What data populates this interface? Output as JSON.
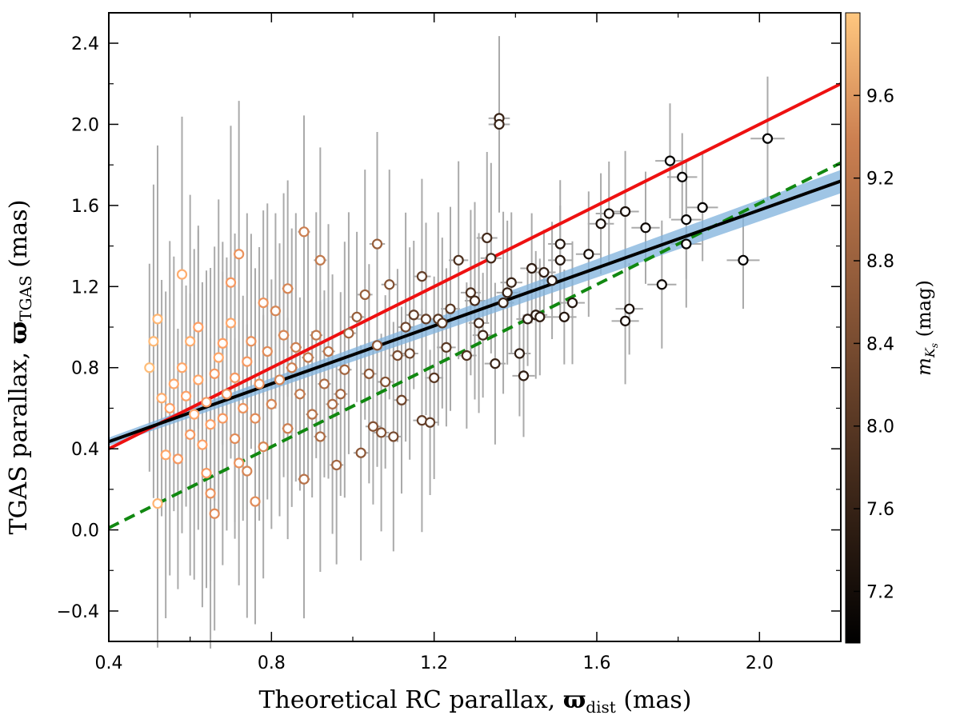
{
  "chart_data": {
    "type": "scatter",
    "xlabel_text": "Theoretical RC parallax, ",
    "xlabel_sym": "ϖ",
    "xlabel_sub": "dist",
    "xlabel_unit": " (mas)",
    "ylabel_text": "TGAS parallax, ",
    "ylabel_sym": "ϖ",
    "ylabel_sub": "TGAS",
    "ylabel_unit": " (mas)",
    "colorbar_label_sym": "m",
    "colorbar_label_sub": "K",
    "colorbar_label_subsub": "s",
    "colorbar_label_unit": " (mag)",
    "xlim": [
      0.4,
      2.2
    ],
    "ylim": [
      -0.55,
      2.55
    ],
    "xticks": [
      0.4,
      0.8,
      1.2,
      1.6,
      2.0
    ],
    "yticks": [
      -0.4,
      0.0,
      0.4,
      0.8,
      1.2,
      1.6,
      2.0,
      2.4
    ],
    "xtick_labels": [
      "0.4",
      "0.8",
      "1.2",
      "1.6",
      "2.0"
    ],
    "ytick_labels": [
      "−0.4",
      "0.0",
      "0.4",
      "0.8",
      "1.2",
      "1.6",
      "2.0",
      "2.4"
    ],
    "colorbar": {
      "range": [
        6.95,
        10.0
      ],
      "ticks": [
        7.2,
        7.6,
        8.0,
        8.4,
        8.8,
        9.2,
        9.6
      ],
      "tick_labels": [
        "7.2",
        "7.6",
        "8.0",
        "8.4",
        "8.8",
        "9.2",
        "9.6"
      ],
      "colormap": "copper",
      "color_low": "#000000",
      "color_high": "#ffc77f"
    },
    "lines": [
      {
        "style": "solid",
        "color": "#ee1111",
        "x": [
          0.4,
          2.2
        ],
        "y": [
          0.4,
          2.2
        ]
      },
      {
        "style": "dashed",
        "color": "#118811",
        "x": [
          0.4,
          2.2
        ],
        "y": [
          0.01,
          1.81
        ]
      },
      {
        "style": "solid",
        "color": "#000000",
        "x": [
          0.4,
          2.2
        ],
        "y": [
          0.435,
          1.72
        ]
      }
    ],
    "fit_band": {
      "color": "#7fb2dc",
      "x": [
        0.4,
        2.2
      ],
      "lower": [
        0.415,
        1.66
      ],
      "upper": [
        0.455,
        1.775
      ]
    },
    "points": [
      {
        "x": 0.5,
        "y": 0.8,
        "mag": 9.85
      },
      {
        "x": 0.51,
        "y": 0.93,
        "mag": 9.8
      },
      {
        "x": 0.52,
        "y": 1.04,
        "mag": 9.75
      },
      {
        "x": 0.52,
        "y": 0.13,
        "mag": 9.7
      },
      {
        "x": 0.53,
        "y": 0.65,
        "mag": 9.6
      },
      {
        "x": 0.54,
        "y": 0.37,
        "mag": 9.5
      },
      {
        "x": 0.55,
        "y": 0.6,
        "mag": 9.4
      },
      {
        "x": 0.56,
        "y": 0.72,
        "mag": 9.5
      },
      {
        "x": 0.57,
        "y": 0.35,
        "mag": 9.3
      },
      {
        "x": 0.58,
        "y": 0.8,
        "mag": 9.5
      },
      {
        "x": 0.58,
        "y": 1.26,
        "mag": 9.6
      },
      {
        "x": 0.59,
        "y": 0.66,
        "mag": 9.4
      },
      {
        "x": 0.6,
        "y": 0.47,
        "mag": 9.3
      },
      {
        "x": 0.61,
        "y": 0.57,
        "mag": 9.5
      },
      {
        "x": 0.6,
        "y": 0.93,
        "mag": 9.6
      },
      {
        "x": 0.62,
        "y": 1.0,
        "mag": 9.4
      },
      {
        "x": 0.62,
        "y": 0.74,
        "mag": 9.5
      },
      {
        "x": 0.63,
        "y": 0.42,
        "mag": 9.4
      },
      {
        "x": 0.64,
        "y": 0.63,
        "mag": 9.3
      },
      {
        "x": 0.64,
        "y": 0.28,
        "mag": 9.3
      },
      {
        "x": 0.65,
        "y": 0.18,
        "mag": 9.2
      },
      {
        "x": 0.65,
        "y": 0.52,
        "mag": 9.4
      },
      {
        "x": 0.66,
        "y": 0.08,
        "mag": 9.1
      },
      {
        "x": 0.66,
        "y": 0.77,
        "mag": 9.3
      },
      {
        "x": 0.67,
        "y": 0.85,
        "mag": 9.5
      },
      {
        "x": 0.68,
        "y": 0.55,
        "mag": 9.3
      },
      {
        "x": 0.68,
        "y": 0.92,
        "mag": 9.4
      },
      {
        "x": 0.69,
        "y": 0.67,
        "mag": 9.2
      },
      {
        "x": 0.7,
        "y": 1.22,
        "mag": 9.3
      },
      {
        "x": 0.7,
        "y": 1.02,
        "mag": 9.5
      },
      {
        "x": 0.71,
        "y": 0.45,
        "mag": 9.1
      },
      {
        "x": 0.71,
        "y": 0.75,
        "mag": 9.3
      },
      {
        "x": 0.72,
        "y": 1.36,
        "mag": 9.2
      },
      {
        "x": 0.72,
        "y": 0.33,
        "mag": 9.2
      },
      {
        "x": 0.73,
        "y": 0.6,
        "mag": 9.2
      },
      {
        "x": 0.74,
        "y": 0.83,
        "mag": 9.3
      },
      {
        "x": 0.74,
        "y": 0.29,
        "mag": 9.0
      },
      {
        "x": 0.75,
        "y": 0.93,
        "mag": 9.2
      },
      {
        "x": 0.76,
        "y": 0.14,
        "mag": 9.1
      },
      {
        "x": 0.76,
        "y": 0.55,
        "mag": 9.1
      },
      {
        "x": 0.77,
        "y": 0.72,
        "mag": 9.2
      },
      {
        "x": 0.78,
        "y": 1.12,
        "mag": 9.2
      },
      {
        "x": 0.78,
        "y": 0.41,
        "mag": 9.0
      },
      {
        "x": 0.79,
        "y": 0.88,
        "mag": 9.1
      },
      {
        "x": 0.8,
        "y": 0.62,
        "mag": 9.0
      },
      {
        "x": 0.81,
        "y": 1.08,
        "mag": 9.0
      },
      {
        "x": 0.82,
        "y": 0.74,
        "mag": 9.0
      },
      {
        "x": 0.83,
        "y": 0.96,
        "mag": 9.0
      },
      {
        "x": 0.84,
        "y": 0.5,
        "mag": 8.9
      },
      {
        "x": 0.84,
        "y": 1.19,
        "mag": 9.0
      },
      {
        "x": 0.85,
        "y": 0.8,
        "mag": 8.9
      },
      {
        "x": 0.86,
        "y": 0.9,
        "mag": 8.9
      },
      {
        "x": 0.87,
        "y": 0.67,
        "mag": 8.8
      },
      {
        "x": 0.88,
        "y": 1.47,
        "mag": 8.9
      },
      {
        "x": 0.88,
        "y": 0.25,
        "mag": 8.7
      },
      {
        "x": 0.89,
        "y": 0.85,
        "mag": 8.8
      },
      {
        "x": 0.9,
        "y": 0.57,
        "mag": 8.7
      },
      {
        "x": 0.91,
        "y": 0.96,
        "mag": 8.8
      },
      {
        "x": 0.92,
        "y": 0.46,
        "mag": 8.6
      },
      {
        "x": 0.92,
        "y": 1.33,
        "mag": 8.8
      },
      {
        "x": 0.93,
        "y": 0.72,
        "mag": 8.6
      },
      {
        "x": 0.94,
        "y": 0.88,
        "mag": 8.7
      },
      {
        "x": 0.95,
        "y": 0.62,
        "mag": 8.6
      },
      {
        "x": 0.96,
        "y": 0.32,
        "mag": 8.5
      },
      {
        "x": 0.97,
        "y": 0.67,
        "mag": 8.5
      },
      {
        "x": 0.98,
        "y": 0.79,
        "mag": 8.5
      },
      {
        "x": 0.99,
        "y": 0.97,
        "mag": 8.5
      },
      {
        "x": 1.01,
        "y": 1.05,
        "mag": 8.4
      },
      {
        "x": 1.02,
        "y": 0.38,
        "mag": 8.3
      },
      {
        "x": 1.03,
        "y": 1.16,
        "mag": 8.4
      },
      {
        "x": 1.04,
        "y": 0.77,
        "mag": 8.3
      },
      {
        "x": 1.05,
        "y": 0.51,
        "mag": 8.2
      },
      {
        "x": 1.06,
        "y": 1.41,
        "mag": 8.4
      },
      {
        "x": 1.06,
        "y": 0.91,
        "mag": 8.3
      },
      {
        "x": 1.07,
        "y": 0.48,
        "mag": 8.2
      },
      {
        "x": 1.08,
        "y": 0.73,
        "mag": 8.2
      },
      {
        "x": 1.09,
        "y": 1.21,
        "mag": 8.2
      },
      {
        "x": 1.1,
        "y": 0.46,
        "mag": 8.1
      },
      {
        "x": 1.11,
        "y": 0.86,
        "mag": 8.1
      },
      {
        "x": 1.12,
        "y": 0.64,
        "mag": 8.0
      },
      {
        "x": 1.13,
        "y": 1.0,
        "mag": 8.0
      },
      {
        "x": 1.14,
        "y": 0.87,
        "mag": 8.0
      },
      {
        "x": 1.15,
        "y": 1.06,
        "mag": 7.9
      },
      {
        "x": 1.17,
        "y": 1.25,
        "mag": 7.9
      },
      {
        "x": 1.17,
        "y": 0.54,
        "mag": 7.9
      },
      {
        "x": 1.18,
        "y": 1.04,
        "mag": 7.9
      },
      {
        "x": 1.19,
        "y": 0.53,
        "mag": 7.9
      },
      {
        "x": 1.2,
        "y": 0.75,
        "mag": 7.8
      },
      {
        "x": 1.21,
        "y": 1.04,
        "mag": 7.8
      },
      {
        "x": 1.22,
        "y": 1.02,
        "mag": 7.8
      },
      {
        "x": 1.23,
        "y": 0.9,
        "mag": 7.8
      },
      {
        "x": 1.24,
        "y": 1.09,
        "mag": 7.8
      },
      {
        "x": 1.26,
        "y": 1.33,
        "mag": 7.7
      },
      {
        "x": 1.28,
        "y": 0.86,
        "mag": 7.7
      },
      {
        "x": 1.29,
        "y": 1.17,
        "mag": 7.7
      },
      {
        "x": 1.3,
        "y": 1.13,
        "mag": 7.6
      },
      {
        "x": 1.31,
        "y": 1.02,
        "mag": 7.6
      },
      {
        "x": 1.32,
        "y": 0.96,
        "mag": 7.6
      },
      {
        "x": 1.33,
        "y": 1.44,
        "mag": 7.6
      },
      {
        "x": 1.34,
        "y": 1.34,
        "mag": 7.6
      },
      {
        "x": 1.35,
        "y": 0.82,
        "mag": 7.5
      },
      {
        "x": 1.36,
        "y": 2.03,
        "mag": 7.5
      },
      {
        "x": 1.36,
        "y": 2.0,
        "mag": 7.5
      },
      {
        "x": 1.37,
        "y": 1.12,
        "mag": 7.5
      },
      {
        "x": 1.38,
        "y": 1.17,
        "mag": 7.5
      },
      {
        "x": 1.39,
        "y": 1.22,
        "mag": 7.5
      },
      {
        "x": 1.41,
        "y": 0.87,
        "mag": 7.4
      },
      {
        "x": 1.42,
        "y": 0.76,
        "mag": 7.4
      },
      {
        "x": 1.43,
        "y": 1.04,
        "mag": 7.4
      },
      {
        "x": 1.44,
        "y": 1.29,
        "mag": 7.4
      },
      {
        "x": 1.45,
        "y": 1.06,
        "mag": 7.4
      },
      {
        "x": 1.46,
        "y": 1.05,
        "mag": 7.4
      },
      {
        "x": 1.47,
        "y": 1.27,
        "mag": 7.4
      },
      {
        "x": 1.49,
        "y": 1.23,
        "mag": 7.3
      },
      {
        "x": 1.51,
        "y": 1.41,
        "mag": 7.3
      },
      {
        "x": 1.51,
        "y": 1.33,
        "mag": 7.3
      },
      {
        "x": 1.52,
        "y": 1.05,
        "mag": 7.3
      },
      {
        "x": 1.54,
        "y": 1.12,
        "mag": 7.3
      },
      {
        "x": 1.58,
        "y": 1.36,
        "mag": 7.2
      },
      {
        "x": 1.61,
        "y": 1.51,
        "mag": 7.2
      },
      {
        "x": 1.63,
        "y": 1.56,
        "mag": 7.2
      },
      {
        "x": 1.67,
        "y": 1.03,
        "mag": 7.2
      },
      {
        "x": 1.67,
        "y": 1.57,
        "mag": 7.2
      },
      {
        "x": 1.68,
        "y": 1.09,
        "mag": 7.2
      },
      {
        "x": 1.72,
        "y": 1.49,
        "mag": 7.1
      },
      {
        "x": 1.76,
        "y": 1.21,
        "mag": 7.1
      },
      {
        "x": 1.78,
        "y": 1.82,
        "mag": 7.0
      },
      {
        "x": 1.81,
        "y": 1.74,
        "mag": 7.0
      },
      {
        "x": 1.82,
        "y": 1.53,
        "mag": 7.0
      },
      {
        "x": 1.82,
        "y": 1.41,
        "mag": 7.0
      },
      {
        "x": 1.86,
        "y": 1.59,
        "mag": 7.0
      },
      {
        "x": 1.96,
        "y": 1.33,
        "mag": 7.0
      },
      {
        "x": 2.02,
        "y": 1.93,
        "mag": 6.95
      }
    ]
  }
}
